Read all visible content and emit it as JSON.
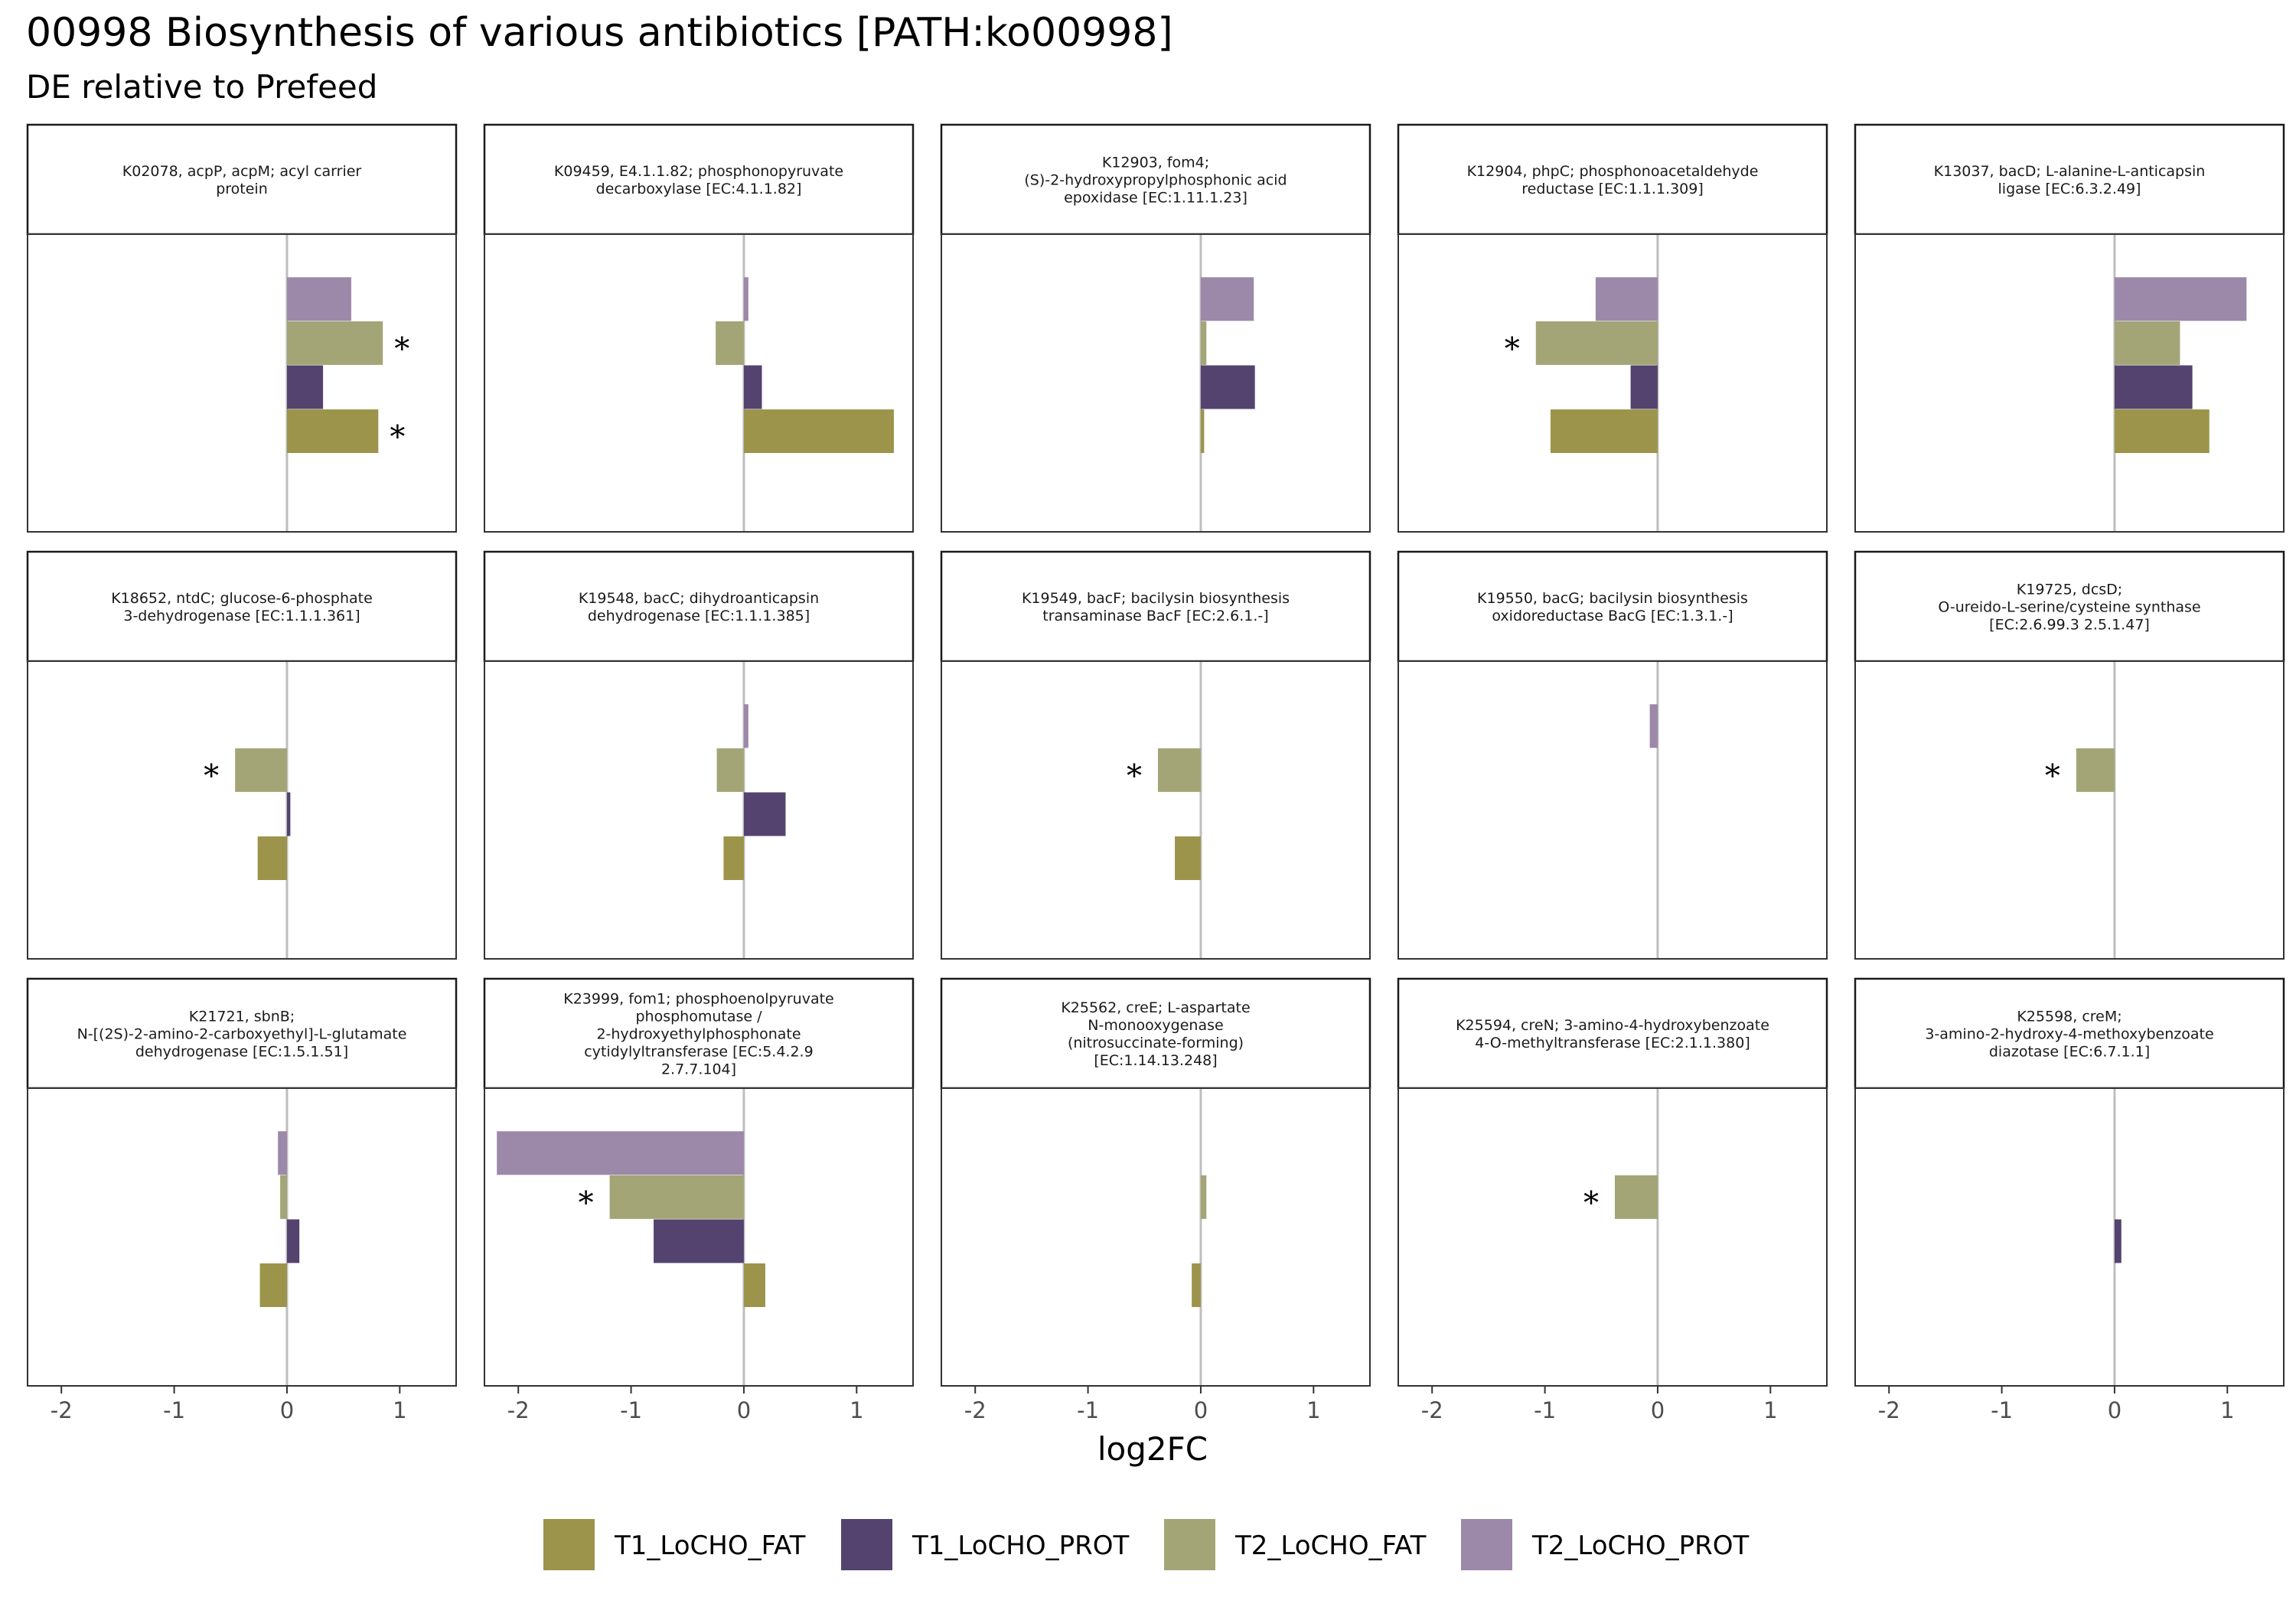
{
  "title": "00998 Biosynthesis of various antibiotics [PATH:ko00998]",
  "subtitle": "DE relative to Prefeed",
  "colors": {
    "T1_LoCHO_FAT": "#9c944a",
    "T1_LoCHO_PROT": "#54436f",
    "T2_LoCHO_FAT": "#a3a576",
    "T2_LoCHO_PROT": "#9c88a8",
    "zero_line": "#bebebe"
  },
  "chart_data": {
    "type": "bar",
    "orientation": "horizontal",
    "facet_layout": "3 rows x 5 columns",
    "xlabel": "log2FC",
    "xlim": [
      -2.3,
      1.5
    ],
    "x_ticks": [
      -2,
      -1,
      0,
      1
    ],
    "x_tick_labels": [
      "-2",
      "-1",
      "0",
      "1"
    ],
    "grid": false,
    "legend_position": "bottom",
    "series_order_top_to_bottom": [
      "T2_LoCHO_PROT",
      "T2_LoCHO_FAT",
      "T1_LoCHO_PROT",
      "T1_LoCHO_FAT"
    ],
    "legend": [
      "T1_LoCHO_FAT",
      "T1_LoCHO_PROT",
      "T2_LoCHO_FAT",
      "T2_LoCHO_PROT"
    ],
    "significance_marker": "*",
    "facets": [
      {
        "title": [
          "K02078, acpP, acpM; acyl carrier",
          "protein"
        ],
        "values": {
          "T2_LoCHO_PROT": 0.57,
          "T2_LoCHO_FAT": 0.85,
          "T1_LoCHO_PROT": 0.32,
          "T1_LoCHO_FAT": 0.81
        },
        "significant": [
          "T2_LoCHO_FAT",
          "T1_LoCHO_FAT"
        ]
      },
      {
        "title": [
          "K09459, E4.1.1.82; phosphonopyruvate",
          "decarboxylase [EC:4.1.1.82]"
        ],
        "values": {
          "T2_LoCHO_PROT": 0.04,
          "T2_LoCHO_FAT": -0.25,
          "T1_LoCHO_PROT": 0.16,
          "T1_LoCHO_FAT": 1.33
        },
        "significant": []
      },
      {
        "title": [
          "K12903, fom4;",
          "(S)-2-hydroxypropylphosphonic acid",
          "epoxidase [EC:1.11.1.23]"
        ],
        "values": {
          "T2_LoCHO_PROT": 0.47,
          "T2_LoCHO_FAT": 0.05,
          "T1_LoCHO_PROT": 0.48,
          "T1_LoCHO_FAT": 0.03
        },
        "significant": []
      },
      {
        "title": [
          "K12904, phpC; phosphonoacetaldehyde",
          "reductase [EC:1.1.1.309]"
        ],
        "values": {
          "T2_LoCHO_PROT": -0.55,
          "T2_LoCHO_FAT": -1.08,
          "T1_LoCHO_PROT": -0.24,
          "T1_LoCHO_FAT": -0.95
        },
        "significant": [
          "T2_LoCHO_FAT"
        ]
      },
      {
        "title": [
          "K13037, bacD; L-alanine-L-anticapsin",
          "ligase [EC:6.3.2.49]"
        ],
        "values": {
          "T2_LoCHO_PROT": 1.17,
          "T2_LoCHO_FAT": 0.58,
          "T1_LoCHO_PROT": 0.69,
          "T1_LoCHO_FAT": 0.84
        },
        "significant": []
      },
      {
        "title": [
          "K18652, ntdC; glucose-6-phosphate",
          "3-dehydrogenase [EC:1.1.1.361]"
        ],
        "values": {
          "T2_LoCHO_PROT": null,
          "T2_LoCHO_FAT": -0.46,
          "T1_LoCHO_PROT": 0.03,
          "T1_LoCHO_FAT": -0.26
        },
        "significant": [
          "T2_LoCHO_FAT"
        ]
      },
      {
        "title": [
          "K19548, bacC; dihydroanticapsin",
          "dehydrogenase [EC:1.1.1.385]"
        ],
        "values": {
          "T2_LoCHO_PROT": 0.04,
          "T2_LoCHO_FAT": -0.24,
          "T1_LoCHO_PROT": 0.37,
          "T1_LoCHO_FAT": -0.18
        },
        "significant": []
      },
      {
        "title": [
          "K19549, bacF; bacilysin biosynthesis",
          "transaminase BacF [EC:2.6.1.-]"
        ],
        "values": {
          "T2_LoCHO_PROT": null,
          "T2_LoCHO_FAT": -0.38,
          "T1_LoCHO_PROT": null,
          "T1_LoCHO_FAT": -0.23
        },
        "significant": [
          "T2_LoCHO_FAT"
        ]
      },
      {
        "title": [
          "K19550, bacG; bacilysin biosynthesis",
          "oxidoreductase BacG [EC:1.3.1.-]"
        ],
        "values": {
          "T2_LoCHO_PROT": -0.07,
          "T2_LoCHO_FAT": null,
          "T1_LoCHO_PROT": null,
          "T1_LoCHO_FAT": null
        },
        "significant": []
      },
      {
        "title": [
          "K19725, dcsD;",
          "O-ureido-L-serine/cysteine synthase",
          "[EC:2.6.99.3 2.5.1.47]"
        ],
        "values": {
          "T2_LoCHO_PROT": null,
          "T2_LoCHO_FAT": -0.34,
          "T1_LoCHO_PROT": null,
          "T1_LoCHO_FAT": null
        },
        "significant": [
          "T2_LoCHO_FAT"
        ]
      },
      {
        "title": [
          "K21721, sbnB;",
          "N-[(2S)-2-amino-2-carboxyethyl]-L-glutamate",
          "dehydrogenase [EC:1.5.1.51]"
        ],
        "values": {
          "T2_LoCHO_PROT": -0.08,
          "T2_LoCHO_FAT": -0.06,
          "T1_LoCHO_PROT": 0.11,
          "T1_LoCHO_FAT": -0.24
        },
        "significant": []
      },
      {
        "title": [
          "K23999, fom1; phosphoenolpyruvate",
          "phosphomutase /",
          "2-hydroxyethylphosphonate",
          "cytidylyltransferase [EC:5.4.2.9",
          "2.7.7.104]"
        ],
        "values": {
          "T2_LoCHO_PROT": -2.19,
          "T2_LoCHO_FAT": -1.19,
          "T1_LoCHO_PROT": -0.8,
          "T1_LoCHO_FAT": 0.19
        },
        "significant": [
          "T2_LoCHO_FAT"
        ]
      },
      {
        "title": [
          "K25562, creE; L-aspartate",
          "N-monooxygenase",
          "(nitrosuccinate-forming)",
          "[EC:1.14.13.248]"
        ],
        "values": {
          "T2_LoCHO_PROT": null,
          "T2_LoCHO_FAT": 0.05,
          "T1_LoCHO_PROT": null,
          "T1_LoCHO_FAT": -0.08
        },
        "significant": []
      },
      {
        "title": [
          "K25594, creN; 3-amino-4-hydroxybenzoate",
          "4-O-methyltransferase [EC:2.1.1.380]"
        ],
        "values": {
          "T2_LoCHO_PROT": null,
          "T2_LoCHO_FAT": -0.38,
          "T1_LoCHO_PROT": null,
          "T1_LoCHO_FAT": null
        },
        "significant": [
          "T2_LoCHO_FAT"
        ]
      },
      {
        "title": [
          "K25598, creM;",
          "3-amino-2-hydroxy-4-methoxybenzoate",
          "diazotase [EC:6.7.1.1]"
        ],
        "values": {
          "T2_LoCHO_PROT": null,
          "T2_LoCHO_FAT": null,
          "T1_LoCHO_PROT": 0.06,
          "T1_LoCHO_FAT": null
        },
        "significant": []
      }
    ]
  }
}
